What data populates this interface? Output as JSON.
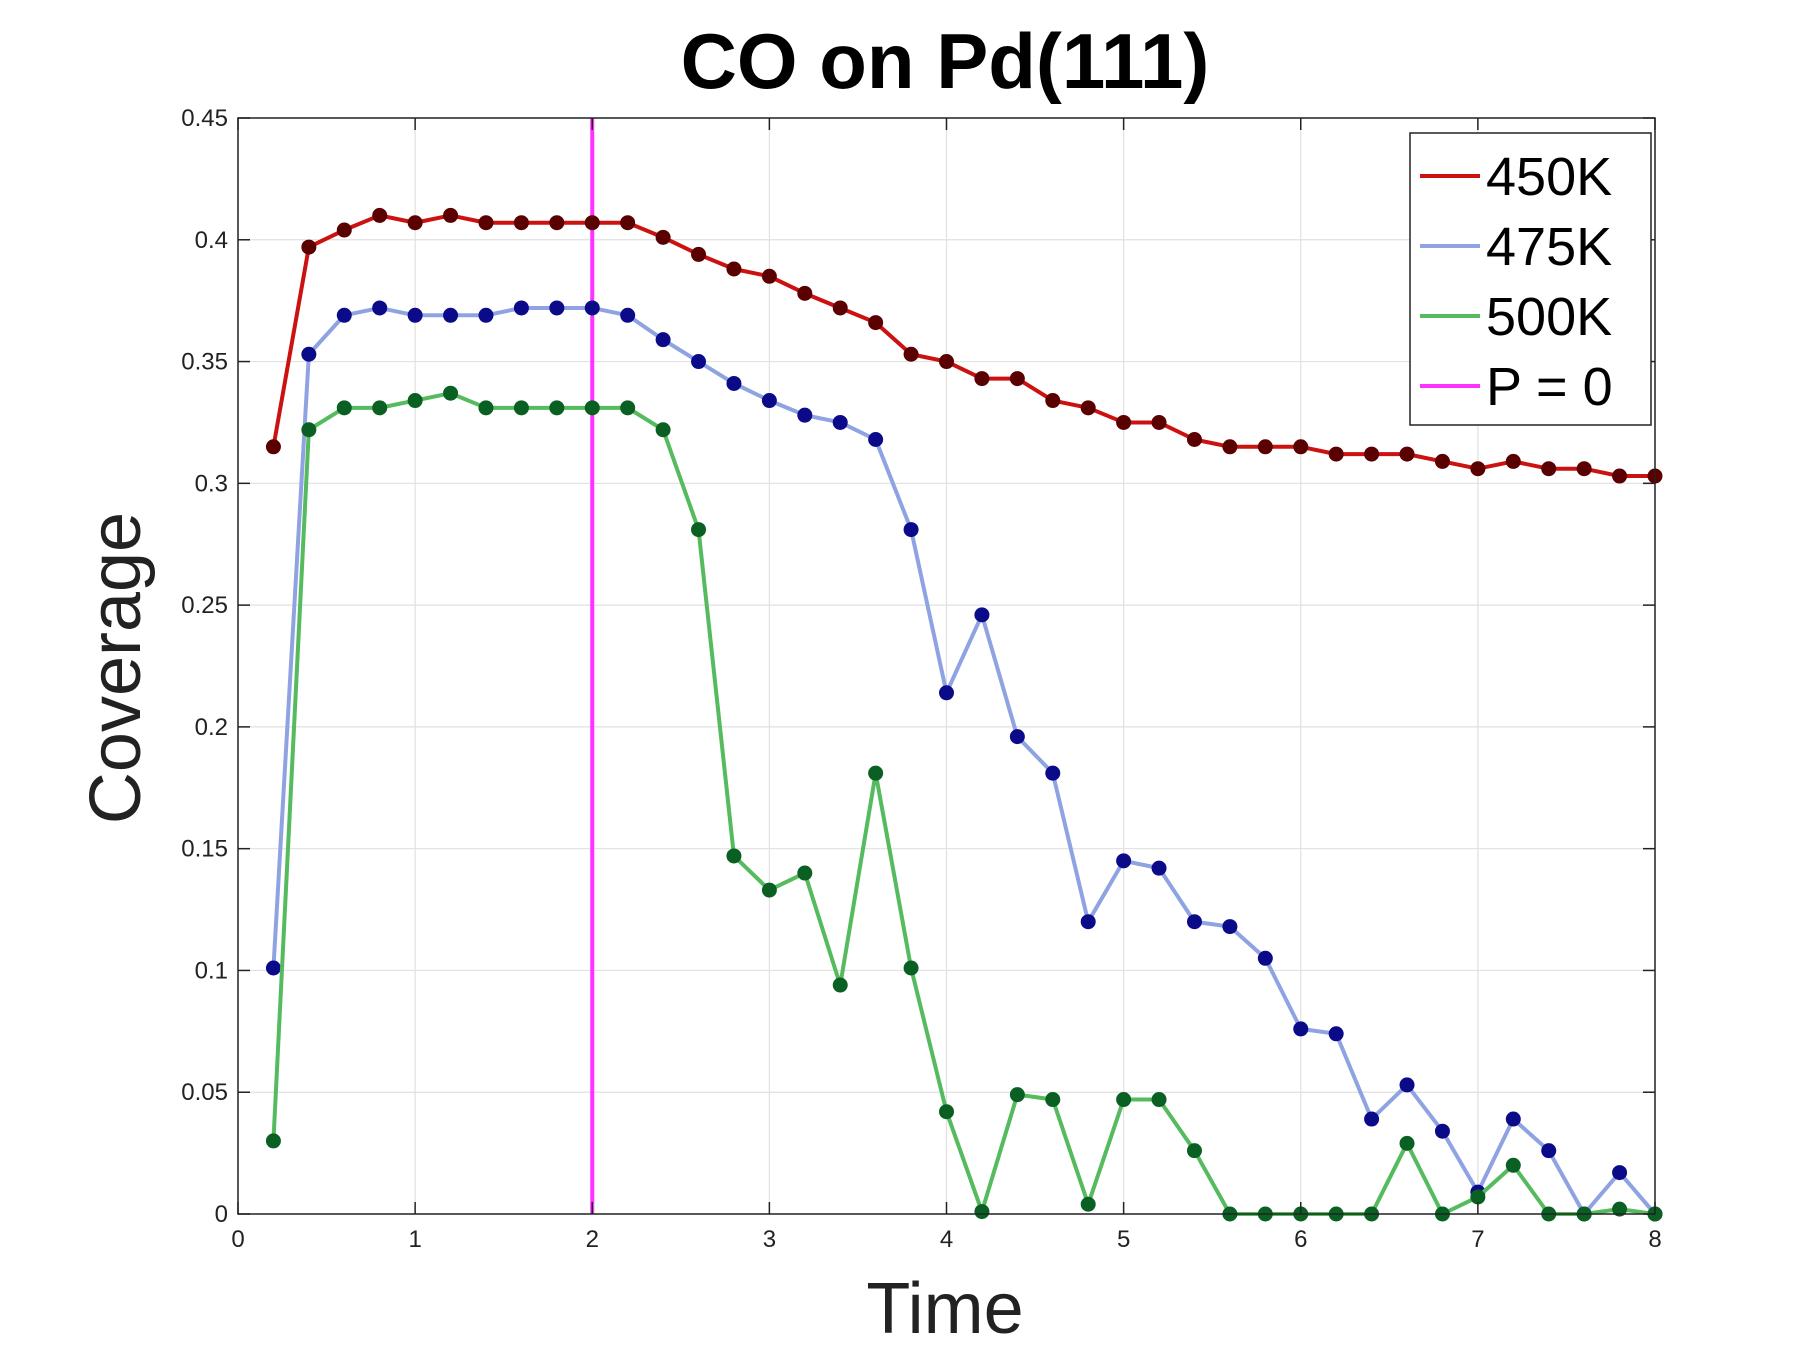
{
  "chart_data": {
    "type": "line",
    "title": "CO on Pd(111)",
    "xlabel": "Time",
    "ylabel": "Coverage",
    "xlim": [
      0,
      8
    ],
    "ylim": [
      0,
      0.45
    ],
    "xticks": [
      0,
      1,
      2,
      3,
      4,
      5,
      6,
      7,
      8
    ],
    "yticks": [
      0,
      0.05,
      0.1,
      0.15,
      0.2,
      0.25,
      0.3,
      0.35,
      0.4,
      0.45
    ],
    "xtick_labels": [
      "0",
      "1",
      "2",
      "3",
      "4",
      "5",
      "6",
      "7",
      "8"
    ],
    "ytick_labels": [
      "0",
      "0.05",
      "0.1",
      "0.15",
      "0.2",
      "0.25",
      "0.3",
      "0.35",
      "0.4",
      "0.45"
    ],
    "grid": true,
    "legend_position": "top-right",
    "x": [
      0.2,
      0.4,
      0.6,
      0.8,
      1.0,
      1.2,
      1.4,
      1.6,
      1.8,
      2.0,
      2.2,
      2.4,
      2.6,
      2.8,
      3.0,
      3.2,
      3.4,
      3.6,
      3.8,
      4.0,
      4.2,
      4.4,
      4.6,
      4.8,
      5.0,
      5.2,
      5.4,
      5.6,
      5.8,
      6.0,
      6.2,
      6.4,
      6.6,
      6.8,
      7.0,
      7.2,
      7.4,
      7.6,
      7.8,
      8.0
    ],
    "series": [
      {
        "name": "450K",
        "color": "#cc1111",
        "marker_color": "#5a0000",
        "values": [
          0.315,
          0.397,
          0.404,
          0.41,
          0.407,
          0.41,
          0.407,
          0.407,
          0.407,
          0.407,
          0.407,
          0.401,
          0.394,
          0.388,
          0.385,
          0.378,
          0.372,
          0.366,
          0.353,
          0.35,
          0.343,
          0.343,
          0.334,
          0.331,
          0.325,
          0.325,
          0.318,
          0.315,
          0.315,
          0.315,
          0.312,
          0.312,
          0.312,
          0.309,
          0.306,
          0.309,
          0.306,
          0.306,
          0.303,
          0.303
        ]
      },
      {
        "name": "475K",
        "color": "#8fa3e3",
        "marker_color": "#0b0b8a",
        "values": [
          0.101,
          0.353,
          0.369,
          0.372,
          0.369,
          0.369,
          0.369,
          0.372,
          0.372,
          0.372,
          0.369,
          0.359,
          0.35,
          0.341,
          0.334,
          0.328,
          0.325,
          0.318,
          0.281,
          0.214,
          0.246,
          0.196,
          0.181,
          0.12,
          0.145,
          0.142,
          0.12,
          0.118,
          0.105,
          0.076,
          0.074,
          0.039,
          0.053,
          0.034,
          0.009,
          0.039,
          0.026,
          0.0,
          0.017,
          0.0
        ]
      },
      {
        "name": "500K",
        "color": "#55bb5e",
        "marker_color": "#0a6022",
        "values": [
          0.03,
          0.322,
          0.331,
          0.331,
          0.334,
          0.337,
          0.331,
          0.331,
          0.331,
          0.331,
          0.331,
          0.322,
          0.281,
          0.147,
          0.133,
          0.14,
          0.094,
          0.181,
          0.101,
          0.042,
          0.001,
          0.049,
          0.047,
          0.004,
          0.047,
          0.047,
          0.026,
          0.0,
          0.0,
          0.0,
          0.0,
          0.0,
          0.029,
          0.0,
          0.007,
          0.02,
          0.0,
          0.0,
          0.002,
          0.0
        ]
      }
    ],
    "vline": {
      "name": "P = 0",
      "x": 2,
      "color": "#ff33ff"
    }
  }
}
